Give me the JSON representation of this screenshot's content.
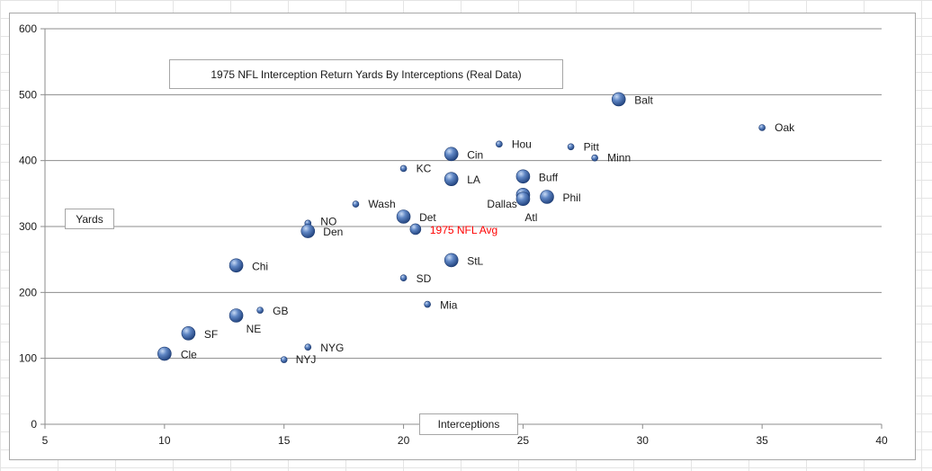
{
  "chart_data": {
    "type": "scatter",
    "title": "1975 NFL Interception Return Yards By Interceptions (Real Data)",
    "xlabel": "Interceptions",
    "ylabel": "Yards",
    "xlim": [
      5,
      40
    ],
    "ylim": [
      0,
      600
    ],
    "xticks": [
      5,
      10,
      15,
      20,
      25,
      30,
      35,
      40
    ],
    "yticks": [
      0,
      100,
      200,
      300,
      400,
      500,
      600
    ],
    "grid": "horizontal major gridlines",
    "legend": "none",
    "marker_color": "#3a64a8",
    "highlight_color": "#ff0000",
    "points": [
      {
        "label": "Balt",
        "x": 29,
        "y": 493,
        "size": "large"
      },
      {
        "label": "Oak",
        "x": 35,
        "y": 450,
        "size": "small"
      },
      {
        "label": "Hou",
        "x": 24,
        "y": 425,
        "size": "small"
      },
      {
        "label": "Pitt",
        "x": 27,
        "y": 421,
        "size": "small"
      },
      {
        "label": "Minn",
        "x": 28,
        "y": 404,
        "size": "small"
      },
      {
        "label": "Cin",
        "x": 22,
        "y": 410,
        "size": "large"
      },
      {
        "label": "KC",
        "x": 20,
        "y": 388,
        "size": "small"
      },
      {
        "label": "Buff",
        "x": 25,
        "y": 376,
        "size": "large"
      },
      {
        "label": "LA",
        "x": 22,
        "y": 372,
        "size": "large"
      },
      {
        "label": "Dallas",
        "x": 25,
        "y": 348,
        "size": "large"
      },
      {
        "label": "Atl",
        "x": 25,
        "y": 342,
        "size": "large"
      },
      {
        "label": "Phil",
        "x": 26,
        "y": 345,
        "size": "large"
      },
      {
        "label": "Wash",
        "x": 18,
        "y": 334,
        "size": "small"
      },
      {
        "label": "Det",
        "x": 20,
        "y": 315,
        "size": "large"
      },
      {
        "label": "NO",
        "x": 16,
        "y": 305,
        "size": "small"
      },
      {
        "label": "1975 NFL Avg",
        "x": 20.5,
        "y": 296,
        "size": "medium",
        "highlight": true
      },
      {
        "label": "Den",
        "x": 16,
        "y": 293,
        "size": "large"
      },
      {
        "label": "StL",
        "x": 22,
        "y": 249,
        "size": "large"
      },
      {
        "label": "Chi",
        "x": 13,
        "y": 241,
        "size": "large"
      },
      {
        "label": "SD",
        "x": 20,
        "y": 222,
        "size": "small"
      },
      {
        "label": "Mia",
        "x": 21,
        "y": 182,
        "size": "small"
      },
      {
        "label": "GB",
        "x": 14,
        "y": 173,
        "size": "small"
      },
      {
        "label": "NE",
        "x": 13,
        "y": 165,
        "size": "large"
      },
      {
        "label": "SF",
        "x": 11,
        "y": 138,
        "size": "large"
      },
      {
        "label": "NYG",
        "x": 16,
        "y": 117,
        "size": "small"
      },
      {
        "label": "Cle",
        "x": 10,
        "y": 107,
        "size": "large"
      },
      {
        "label": "NYJ",
        "x": 15,
        "y": 98,
        "size": "small"
      }
    ]
  }
}
